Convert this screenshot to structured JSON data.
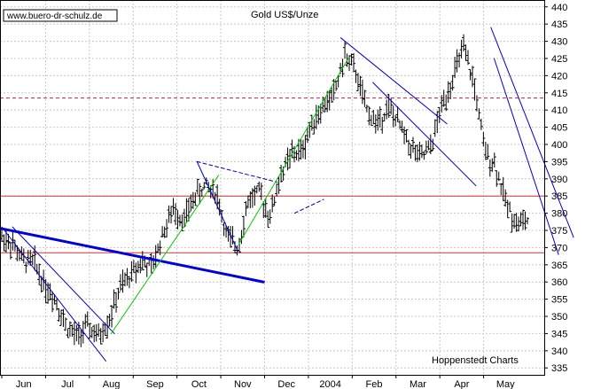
{
  "chart_data": {
    "type": "ohlc",
    "title": "Gold US$/Unze",
    "source_label": "www.buero-dr-schulz.de",
    "credit": "Hoppenstedt Charts",
    "ylim": [
      333,
      442
    ],
    "y_ticks": [
      335,
      340,
      345,
      350,
      355,
      360,
      365,
      370,
      375,
      380,
      385,
      390,
      395,
      400,
      405,
      410,
      415,
      420,
      425,
      430,
      435,
      440
    ],
    "x_labels": [
      "Jun",
      "Jul",
      "Aug",
      "Sep",
      "Oct",
      "Nov",
      "Dec",
      "2004",
      "Feb",
      "Mar",
      "Apr",
      "May"
    ],
    "grid": true,
    "x_range": [
      0,
      49
    ],
    "anchors": [
      [
        0,
        373
      ],
      [
        1,
        371
      ],
      [
        2,
        366
      ],
      [
        3,
        366
      ],
      [
        4,
        359
      ],
      [
        5,
        355
      ],
      [
        6,
        347
      ],
      [
        7,
        344
      ],
      [
        8,
        347
      ],
      [
        9,
        344
      ],
      [
        10,
        349
      ],
      [
        11,
        358
      ],
      [
        12,
        362
      ],
      [
        13,
        366
      ],
      [
        14,
        364
      ],
      [
        15,
        374
      ],
      [
        16,
        381
      ],
      [
        17,
        378
      ],
      [
        18,
        385
      ],
      [
        19,
        388
      ],
      [
        20,
        386
      ],
      [
        21,
        373
      ],
      [
        22,
        370
      ],
      [
        23,
        384
      ],
      [
        24,
        386
      ],
      [
        25,
        379
      ],
      [
        26,
        391
      ],
      [
        27,
        397
      ],
      [
        28,
        398
      ],
      [
        29,
        407
      ],
      [
        30,
        411
      ],
      [
        31,
        415
      ],
      [
        32,
        426
      ],
      [
        33,
        421
      ],
      [
        34,
        410
      ],
      [
        35,
        406
      ],
      [
        36,
        411
      ],
      [
        37,
        406
      ],
      [
        38,
        400
      ],
      [
        39,
        396
      ],
      [
        40,
        399
      ],
      [
        41,
        411
      ],
      [
        42,
        419
      ],
      [
        43,
        428
      ],
      [
        44,
        418
      ],
      [
        45,
        398
      ],
      [
        46,
        394
      ],
      [
        47,
        383
      ],
      [
        48,
        377
      ],
      [
        49,
        378
      ]
    ],
    "horizontal_lines": [
      {
        "y": 385,
        "color": "#e03030",
        "style": "solid"
      },
      {
        "y": 368.5,
        "color": "#e03030",
        "style": "solid"
      },
      {
        "y": 413.5,
        "color": "#c02050",
        "style": "dashed"
      }
    ],
    "trend_lines": [
      {
        "from": [
          0,
          376
        ],
        "to": [
          9.7,
          337
        ],
        "color": "#0000cc",
        "width": 1
      },
      {
        "from": [
          1,
          376
        ],
        "to": [
          10.5,
          345
        ],
        "color": "#0000cc",
        "width": 1
      },
      {
        "from": [
          0,
          375.5
        ],
        "to": [
          24.4,
          360
        ],
        "color": "#0000dd",
        "width": 3
      },
      {
        "from": [
          10.2,
          345
        ],
        "to": [
          20.2,
          391
        ],
        "color": "#00cc00",
        "width": 1
      },
      {
        "from": [
          18.2,
          395
        ],
        "to": [
          22,
          369
        ],
        "color": "#0000cc",
        "width": 1
      },
      {
        "from": [
          18.2,
          395
        ],
        "to": [
          25.7,
          389
        ],
        "color": "#0000cc",
        "width": 1,
        "dashed": true
      },
      {
        "from": [
          22.1,
          371
        ],
        "to": [
          32.3,
          425
        ],
        "color": "#00cc00",
        "width": 1
      },
      {
        "from": [
          27.3,
          380
        ],
        "to": [
          30,
          384
        ],
        "color": "#0000cc",
        "width": 1,
        "dashed": true
      },
      {
        "from": [
          31.6,
          431
        ],
        "to": [
          41.5,
          406
        ],
        "color": "#0000cc",
        "width": 1
      },
      {
        "from": [
          34.6,
          418
        ],
        "to": [
          44.2,
          388
        ],
        "color": "#0000cc",
        "width": 1
      },
      {
        "from": [
          45.6,
          434
        ],
        "to": [
          53.3,
          373
        ],
        "color": "#0000cc",
        "width": 1
      },
      {
        "from": [
          45.9,
          425
        ],
        "to": [
          51.9,
          368
        ],
        "color": "#0000cc",
        "width": 1
      }
    ]
  }
}
